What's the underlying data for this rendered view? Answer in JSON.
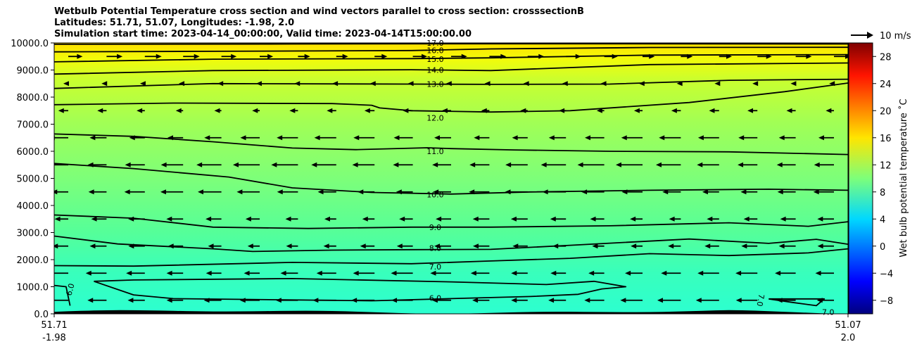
{
  "chart_data": {
    "type": "contour",
    "title_lines": [
      "Wetbulb Potential Temperature cross section and wind vectors parallel to cross section: crosssectionB",
      "Latitudes: 51.71, 51.07, Longitudes: -1.98, 2.0",
      "Simulation start time: 2023-04-14_00:00:00, Valid time: 2023-04-14T15:00:00.00"
    ],
    "y_ticks": [
      "0.0",
      "1000.0",
      "2000.0",
      "3000.0",
      "4000.0",
      "5000.0",
      "6000.0",
      "7000.0",
      "8000.0",
      "9000.0",
      "10000.0"
    ],
    "ylim": [
      0,
      10000
    ],
    "x_ticks": [
      {
        "line1": "51.71",
        "line2": "-1.98"
      },
      {
        "line1": "51.07",
        "line2": "2.0"
      }
    ],
    "colorbar": {
      "label": "Wet bulb potential temperature ˚C",
      "range": [
        -10,
        30
      ],
      "ticks": [
        "−8",
        "−4",
        "0",
        "4",
        "8",
        "12",
        "16",
        "20",
        "24",
        "28"
      ],
      "tick_values": [
        -8,
        -4,
        0,
        4,
        8,
        12,
        16,
        20,
        24,
        28
      ],
      "colormap": "jet"
    },
    "quiver_key": {
      "label": "10 m/s"
    },
    "contour_labels": [
      {
        "text": "17.0",
        "x": 0.48,
        "y": 10000
      },
      {
        "text": "16.0",
        "x": 0.48,
        "y": 9730
      },
      {
        "text": "15.0",
        "x": 0.48,
        "y": 9400
      },
      {
        "text": "14.0",
        "x": 0.48,
        "y": 9000
      },
      {
        "text": "13.0",
        "x": 0.48,
        "y": 8480
      },
      {
        "text": "12.0",
        "x": 0.48,
        "y": 7240
      },
      {
        "text": "11.0",
        "x": 0.48,
        "y": 6000
      },
      {
        "text": "10.0",
        "x": 0.48,
        "y": 4400
      },
      {
        "text": "9.0",
        "x": 0.48,
        "y": 3200
      },
      {
        "text": "8.0",
        "x": 0.48,
        "y": 2430
      },
      {
        "text": "7.0",
        "x": 0.48,
        "y": 1740
      },
      {
        "text": "6.0",
        "x": 0.48,
        "y": 580
      },
      {
        "text": "6.0",
        "x": 0.02,
        "y": 900,
        "rotate": -75
      },
      {
        "text": "7.0",
        "x": 0.89,
        "y": 500,
        "rotate": 100
      },
      {
        "text": "7.0",
        "x": 0.975,
        "y": 60
      }
    ],
    "contours": [
      {
        "level": 17,
        "points": [
          [
            0,
            9950
          ],
          [
            0.3,
            9960
          ],
          [
            0.5,
            9970
          ],
          [
            0.7,
            9970
          ],
          [
            1,
            9960
          ]
        ]
      },
      {
        "level": 16,
        "points": [
          [
            0,
            9670
          ],
          [
            0.2,
            9690
          ],
          [
            0.45,
            9720
          ],
          [
            0.55,
            9780
          ],
          [
            0.75,
            9830
          ],
          [
            1,
            9840
          ]
        ]
      },
      {
        "level": 15,
        "points": [
          [
            0,
            9300
          ],
          [
            0.2,
            9400
          ],
          [
            0.45,
            9420
          ],
          [
            0.55,
            9450
          ],
          [
            0.75,
            9550
          ],
          [
            1,
            9570
          ]
        ]
      },
      {
        "level": 14,
        "points": [
          [
            0,
            8850
          ],
          [
            0.2,
            8980
          ],
          [
            0.45,
            9010
          ],
          [
            0.55,
            8980
          ],
          [
            0.75,
            9200
          ],
          [
            1,
            9260
          ]
        ]
      },
      {
        "level": 13,
        "points": [
          [
            0,
            8320
          ],
          [
            0.2,
            8500
          ],
          [
            0.45,
            8480
          ],
          [
            0.55,
            8470
          ],
          [
            0.7,
            8480
          ],
          [
            0.85,
            8620
          ],
          [
            1,
            8660
          ]
        ]
      },
      {
        "level": 12,
        "points": [
          [
            0,
            7720
          ],
          [
            0.15,
            7780
          ],
          [
            0.35,
            7760
          ],
          [
            0.4,
            7700
          ],
          [
            0.41,
            7600
          ],
          [
            0.45,
            7500
          ],
          [
            0.55,
            7450
          ],
          [
            0.65,
            7500
          ],
          [
            0.8,
            7800
          ],
          [
            0.92,
            8200
          ],
          [
            1,
            8520
          ]
        ]
      },
      {
        "level": 11,
        "points": [
          [
            0,
            6640
          ],
          [
            0.1,
            6550
          ],
          [
            0.2,
            6350
          ],
          [
            0.3,
            6120
          ],
          [
            0.38,
            6060
          ],
          [
            0.47,
            6130
          ],
          [
            0.5,
            6100
          ],
          [
            0.58,
            6050
          ],
          [
            0.7,
            6000
          ],
          [
            0.85,
            5980
          ],
          [
            1,
            5880
          ]
        ]
      },
      {
        "level": 10,
        "points": [
          [
            0,
            5550
          ],
          [
            0.1,
            5360
          ],
          [
            0.22,
            5050
          ],
          [
            0.3,
            4650
          ],
          [
            0.4,
            4480
          ],
          [
            0.5,
            4420
          ],
          [
            0.6,
            4500
          ],
          [
            0.75,
            4560
          ],
          [
            0.9,
            4600
          ],
          [
            1,
            4560
          ]
        ]
      },
      {
        "level": 9,
        "points": [
          [
            0,
            3650
          ],
          [
            0.1,
            3530
          ],
          [
            0.2,
            3200
          ],
          [
            0.32,
            3150
          ],
          [
            0.45,
            3200
          ],
          [
            0.55,
            3200
          ],
          [
            0.7,
            3250
          ],
          [
            0.85,
            3360
          ],
          [
            0.95,
            3230
          ],
          [
            1,
            3400
          ]
        ]
      },
      {
        "level": 8,
        "points": [
          [
            0,
            2870
          ],
          [
            0.08,
            2580
          ],
          [
            0.2,
            2400
          ],
          [
            0.25,
            2300
          ],
          [
            0.35,
            2350
          ],
          [
            0.45,
            2370
          ],
          [
            0.55,
            2380
          ],
          [
            0.65,
            2530
          ],
          [
            0.8,
            2760
          ],
          [
            0.9,
            2600
          ],
          [
            0.96,
            2750
          ],
          [
            1,
            2570
          ]
        ]
      },
      {
        "level": 7,
        "points": [
          [
            0,
            1780
          ],
          [
            0.1,
            1760
          ],
          [
            0.3,
            1900
          ],
          [
            0.45,
            1850
          ],
          [
            0.55,
            1950
          ],
          [
            0.65,
            2050
          ],
          [
            0.75,
            2220
          ],
          [
            0.85,
            2150
          ],
          [
            0.95,
            2250
          ],
          [
            1,
            2400
          ]
        ]
      },
      {
        "level": 6,
        "points": [
          [
            0,
            1050
          ],
          [
            0.015,
            1000
          ],
          [
            0.02,
            300
          ]
        ]
      },
      {
        "level": 6,
        "points": [
          [
            0.05,
            1200
          ],
          [
            0.1,
            1250
          ],
          [
            0.3,
            1300
          ],
          [
            0.5,
            1180
          ],
          [
            0.62,
            1080
          ],
          [
            0.68,
            1200
          ],
          [
            0.72,
            1000
          ],
          [
            0.69,
            920
          ],
          [
            0.66,
            720
          ],
          [
            0.6,
            640
          ],
          [
            0.5,
            560
          ],
          [
            0.4,
            480
          ],
          [
            0.25,
            530
          ],
          [
            0.15,
            560
          ],
          [
            0.1,
            700
          ],
          [
            0.05,
            1200
          ]
        ]
      },
      {
        "level": 7,
        "points": [
          [
            0.9,
            550
          ],
          [
            0.93,
            420
          ],
          [
            0.96,
            300
          ],
          [
            0.97,
            550
          ],
          [
            0.9,
            550
          ]
        ]
      }
    ],
    "winds": {
      "description": "westerly aloft above ~8500 m, easterly below",
      "levels_m": [
        9500,
        8500,
        7500,
        6500,
        5500,
        4500,
        3500,
        2500,
        1500,
        500
      ],
      "speed_ms": [
        10,
        3,
        6,
        13,
        16,
        14,
        10,
        10,
        13,
        14
      ]
    },
    "terrain_height_max_m": 150
  }
}
